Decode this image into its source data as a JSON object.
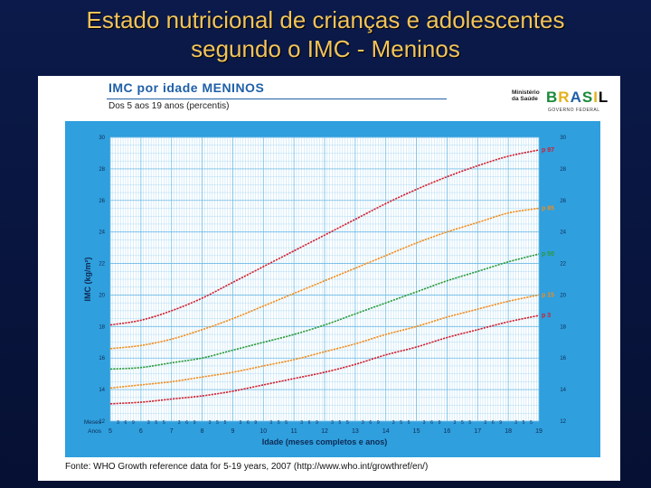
{
  "slide": {
    "title_line1": "Estado nutricional de crianças e adolescentes",
    "title_line2": "segundo o IMC - Meninos"
  },
  "panel": {
    "heading": "IMC por idade MENINOS",
    "subtitle": "Dos 5 aos 19 anos (percentis)",
    "logo_ministry": "Ministério da Saúde",
    "logo_brasil": [
      "B",
      "R",
      "A",
      "S",
      "I",
      "L"
    ],
    "logo_gov": "GOVERNO FEDERAL",
    "source": "Fonte: WHO Growth reference data for 5-19 years, 2007 (http://www.who.int/growthref/en/)"
  },
  "colors": {
    "chart_bg": "#2f9fdd",
    "grid": "#9fd3f1",
    "axis_text": "#1c3f7a",
    "p97": "#d0202f",
    "p85": "#f28c1c",
    "p50": "#2a9a3c",
    "p15": "#f28c1c",
    "p3": "#d0202f"
  },
  "chart_data": {
    "type": "line",
    "title": "IMC por idade MENINOS",
    "subtitle": "Dos 5 aos 19 anos (percentis)",
    "xlabel": "Idade (meses completos e anos)",
    "ylabel": "IMC (kg/m²)",
    "xlim": [
      5,
      19
    ],
    "ylim": [
      12,
      30
    ],
    "x_ticks": [
      5,
      6,
      7,
      8,
      9,
      10,
      11,
      12,
      13,
      14,
      15,
      16,
      17,
      18,
      19
    ],
    "x_tick_labels": [
      "5",
      "6",
      "7",
      "8",
      "9",
      "10",
      "11",
      "12",
      "13",
      "14",
      "15",
      "16",
      "17",
      "18",
      "19"
    ],
    "month_ticks": [
      "3",
      "6",
      "9"
    ],
    "month_ticks_alt": [
      "3",
      "5",
      "5"
    ],
    "x_row_labels": [
      "Meses",
      "Anos"
    ],
    "y_ticks": [
      12,
      14,
      16,
      18,
      20,
      22,
      24,
      26,
      28,
      30
    ],
    "y_tick_labels": [
      "12",
      "14",
      "16",
      "18",
      "20",
      "22",
      "24",
      "26",
      "28",
      "30"
    ],
    "x": [
      5,
      6,
      7,
      8,
      9,
      10,
      11,
      12,
      13,
      14,
      15,
      16,
      17,
      18,
      19
    ],
    "series": [
      {
        "name": "p 97",
        "color_key": "p97",
        "values": [
          18.1,
          18.4,
          19.0,
          19.8,
          20.8,
          21.8,
          22.8,
          23.8,
          24.8,
          25.8,
          26.7,
          27.5,
          28.2,
          28.8,
          29.2
        ]
      },
      {
        "name": "p 85",
        "color_key": "p85",
        "values": [
          16.6,
          16.8,
          17.2,
          17.8,
          18.5,
          19.3,
          20.1,
          20.9,
          21.7,
          22.5,
          23.3,
          24.0,
          24.6,
          25.2,
          25.5
        ]
      },
      {
        "name": "p 50",
        "color_key": "p50",
        "values": [
          15.3,
          15.4,
          15.7,
          16.0,
          16.5,
          17.0,
          17.5,
          18.1,
          18.8,
          19.5,
          20.2,
          20.9,
          21.5,
          22.1,
          22.6
        ]
      },
      {
        "name": "p 15",
        "color_key": "p15",
        "values": [
          14.1,
          14.3,
          14.5,
          14.8,
          15.1,
          15.5,
          15.9,
          16.4,
          16.9,
          17.5,
          18.0,
          18.6,
          19.1,
          19.6,
          20.0
        ]
      },
      {
        "name": "p 3",
        "color_key": "p3",
        "values": [
          13.1,
          13.2,
          13.4,
          13.6,
          13.9,
          14.3,
          14.7,
          15.1,
          15.6,
          16.2,
          16.7,
          17.3,
          17.8,
          18.3,
          18.7
        ]
      }
    ]
  }
}
